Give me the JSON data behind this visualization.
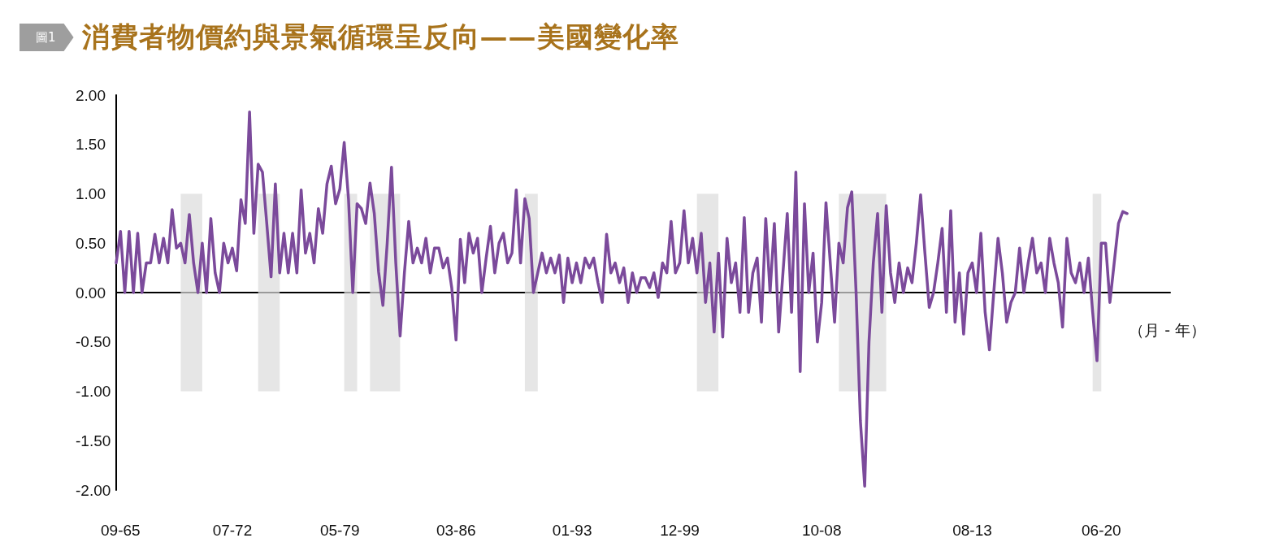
{
  "chart_data": {
    "type": "line",
    "title": "消費者物價約與景氣循環呈反向——美國變化率",
    "xlabel": "（月 - 年）",
    "annotations": [
      "圖1"
    ],
    "marker": "none",
    "line_style": "solid",
    "categories": [
      null,
      "09-65",
      null,
      null,
      null,
      null,
      null,
      null,
      null,
      null,
      null,
      null,
      null,
      null,
      null,
      null,
      null,
      null,
      null,
      null,
      null,
      null,
      null,
      null,
      null,
      null,
      null,
      "07-72",
      null,
      null,
      null,
      null,
      null,
      null,
      null,
      null,
      null,
      null,
      null,
      null,
      null,
      null,
      null,
      null,
      null,
      null,
      null,
      null,
      null,
      null,
      null,
      null,
      "05-79",
      null,
      null,
      null,
      null,
      null,
      null,
      null,
      null,
      null,
      null,
      null,
      null,
      null,
      null,
      null,
      null,
      null,
      null,
      null,
      null,
      null,
      null,
      null,
      null,
      null,
      null,
      "03-86",
      null,
      null,
      null,
      null,
      null,
      null,
      null,
      null,
      null,
      null,
      null,
      null,
      null,
      null,
      null,
      null,
      null,
      null,
      null,
      null,
      null,
      null,
      null,
      null,
      null,
      null,
      "01-93",
      null,
      null,
      null,
      null,
      null,
      null,
      null,
      null,
      null,
      null,
      null,
      null,
      null,
      null,
      null,
      null,
      null,
      null,
      null,
      null,
      null,
      null,
      null,
      null,
      "12-99",
      null,
      null,
      null,
      null,
      null,
      null,
      null,
      null,
      null,
      null,
      null,
      null,
      null,
      null,
      null,
      null,
      null,
      null,
      null,
      null,
      null,
      null,
      null,
      null,
      null,
      null,
      null,
      null,
      null,
      null,
      null,
      null,
      "10-08",
      null,
      null,
      null,
      null,
      null,
      null,
      null,
      null,
      null,
      null,
      null,
      null,
      null,
      null,
      null,
      null,
      null,
      null,
      null,
      null,
      null,
      null,
      null,
      null,
      null,
      null,
      null,
      null,
      null,
      null,
      null,
      null,
      null,
      null,
      "08-13",
      null,
      null,
      null,
      null,
      null,
      null,
      null,
      null,
      null,
      null,
      null,
      null,
      null,
      null,
      null,
      null,
      null,
      null,
      null,
      null,
      null,
      null,
      null,
      null,
      null,
      null,
      null,
      null,
      null,
      "06-20",
      null,
      null,
      null,
      null,
      null,
      null,
      null,
      null,
      null,
      null,
      null,
      null,
      null,
      null,
      null,
      null
    ],
    "ylim": [
      -2,
      2
    ],
    "yticks": [
      {
        "value": -2,
        "label": "-2.00"
      },
      {
        "value": -1.5,
        "label": "-1.50"
      },
      {
        "value": -1,
        "label": "-1.00"
      },
      {
        "value": -0.5,
        "label": "-0.50"
      },
      {
        "value": 0,
        "label": "0.00"
      },
      {
        "value": 0.5,
        "label": "0.50"
      },
      {
        "value": 1,
        "label": "1.00"
      },
      {
        "value": 1.5,
        "label": "1.50"
      },
      {
        "value": 2,
        "label": "2.00"
      }
    ],
    "series": [
      {
        "color": "#7b4a9b",
        "values": [
          0.3,
          0.62,
          0,
          0.62,
          0,
          0.6,
          0,
          0.3,
          0.3,
          0.59,
          0.3,
          0.55,
          0.3,
          0.84,
          0.45,
          0.5,
          0.3,
          0.79,
          0.3,
          0,
          0.5,
          0,
          0.75,
          0.2,
          0,
          0.5,
          0.3,
          0.45,
          0.22,
          0.94,
          0.7,
          1.83,
          0.6,
          1.3,
          1.22,
          0.7,
          0.16,
          1.1,
          0.2,
          0.6,
          0.2,
          0.6,
          0.2,
          1.04,
          0.4,
          0.6,
          0.3,
          0.85,
          0.6,
          1.1,
          1.28,
          0.9,
          1.05,
          1.52,
          0.95,
          0,
          0.9,
          0.85,
          0.7,
          1.11,
          0.8,
          0.21,
          -0.13,
          0.5,
          1.27,
          0.3,
          -0.44,
          0.2,
          0.72,
          0.3,
          0.45,
          0.3,
          0.55,
          0.2,
          0.45,
          0.45,
          0.25,
          0.35,
          0.05,
          -0.48,
          0.54,
          0.1,
          0.6,
          0.4,
          0.55,
          0,
          0.35,
          0.67,
          0.2,
          0.5,
          0.6,
          0.3,
          0.4,
          1.04,
          0.3,
          0.95,
          0.75,
          0,
          0.2,
          0.4,
          0.2,
          0.35,
          0.2,
          0.38,
          -0.1,
          0.35,
          0.1,
          0.3,
          0.1,
          0.35,
          0.25,
          0.35,
          0.1,
          -0.1,
          0.59,
          0.2,
          0.3,
          0.1,
          0.25,
          -0.1,
          0.2,
          0,
          0.15,
          0.15,
          0.05,
          0.2,
          -0.05,
          0.3,
          0.2,
          0.72,
          0.2,
          0.3,
          0.83,
          0.3,
          0.55,
          0.2,
          0.6,
          -0.1,
          0.3,
          -0.4,
          0.4,
          -0.45,
          0.55,
          0.1,
          0.3,
          -0.2,
          0.76,
          -0.2,
          0.2,
          0.35,
          -0.3,
          0.75,
          0,
          0.7,
          -0.4,
          0.2,
          0.8,
          -0.2,
          1.22,
          -0.8,
          0.9,
          0,
          0.4,
          -0.5,
          -0.1,
          0.91,
          0.3,
          -0.3,
          0.5,
          0.3,
          0.86,
          1.02,
          0,
          -1.3,
          -1.96,
          -0.5,
          0.3,
          0.8,
          -0.2,
          0.88,
          0.2,
          -0.1,
          0.3,
          0,
          0.25,
          0.1,
          0.5,
          0.99,
          0.4,
          -0.15,
          0,
          0.3,
          0.65,
          -0.2,
          0.83,
          -0.3,
          0.2,
          -0.42,
          0.2,
          0.3,
          0,
          0.6,
          -0.2,
          -0.58,
          0,
          0.55,
          0.2,
          -0.3,
          -0.1,
          0,
          0.45,
          0,
          0.3,
          0.55,
          0.2,
          0.3,
          0,
          0.55,
          0.3,
          0.1,
          -0.35,
          0.55,
          0.2,
          0.1,
          0.3,
          0,
          0.35,
          -0.2,
          -0.69,
          0.5,
          0.5,
          -0.1,
          0.3,
          0.7,
          0.82,
          0.8,
          null,
          null,
          null,
          null,
          null,
          null,
          null,
          null,
          null,
          null
        ]
      }
    ]
  }
}
